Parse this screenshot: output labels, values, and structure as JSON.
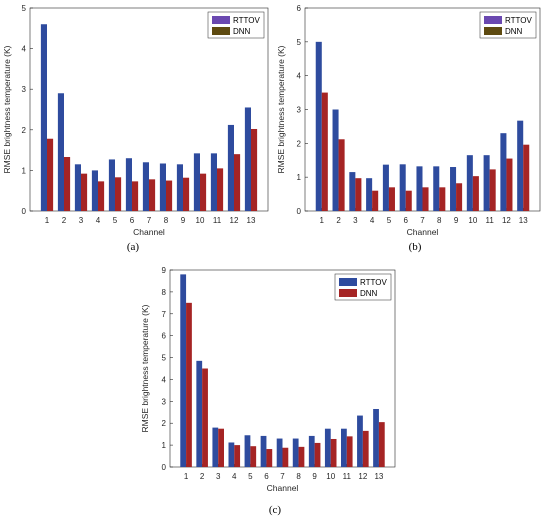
{
  "chart_data": [
    {
      "type": "bar",
      "panel_label": "(a)",
      "xlabel": "Channel",
      "ylabel": "RMSE brightness temperature (K)",
      "categories": [
        "1",
        "2",
        "3",
        "4",
        "5",
        "6",
        "7",
        "8",
        "9",
        "10",
        "11",
        "12",
        "13"
      ],
      "ylim": [
        0,
        5
      ],
      "yticks": [
        0,
        1,
        2,
        3,
        4,
        5
      ],
      "legend_position": "top-right",
      "series": [
        {
          "name": "RTTOV",
          "color": "#2E4B9E",
          "legend_color": "#6A48B0",
          "values": [
            4.6,
            2.9,
            1.15,
            1.0,
            1.27,
            1.3,
            1.2,
            1.17,
            1.15,
            1.42,
            1.42,
            2.12,
            2.55
          ]
        },
        {
          "name": "DNN",
          "color": "#A52424",
          "legend_color": "#5E4A10",
          "values": [
            1.78,
            1.33,
            0.92,
            0.73,
            0.83,
            0.73,
            0.78,
            0.75,
            0.82,
            0.92,
            1.05,
            1.4,
            2.02
          ]
        }
      ]
    },
    {
      "type": "bar",
      "panel_label": "(b)",
      "xlabel": "Channel",
      "ylabel": "RMSE brightness temperature (K)",
      "categories": [
        "1",
        "2",
        "3",
        "4",
        "5",
        "6",
        "7",
        "8",
        "9",
        "10",
        "11",
        "12",
        "13"
      ],
      "ylim": [
        0,
        6
      ],
      "yticks": [
        0,
        1,
        2,
        3,
        4,
        5,
        6
      ],
      "legend_position": "top-right",
      "series": [
        {
          "name": "RTTOV",
          "color": "#2E4B9E",
          "legend_color": "#6A48B0",
          "values": [
            5.0,
            3.0,
            1.15,
            0.97,
            1.37,
            1.38,
            1.32,
            1.32,
            1.3,
            1.65,
            1.65,
            2.3,
            2.67
          ]
        },
        {
          "name": "DNN",
          "color": "#A52424",
          "legend_color": "#5E4A10",
          "values": [
            3.5,
            2.12,
            0.97,
            0.6,
            0.7,
            0.6,
            0.7,
            0.7,
            0.82,
            1.03,
            1.23,
            1.55,
            1.96
          ]
        }
      ]
    },
    {
      "type": "bar",
      "panel_label": "(c)",
      "xlabel": "Channel",
      "ylabel": "RMSE brightness temperature (K)",
      "categories": [
        "1",
        "2",
        "3",
        "4",
        "5",
        "6",
        "7",
        "8",
        "9",
        "10",
        "11",
        "12",
        "13"
      ],
      "ylim": [
        0,
        9
      ],
      "yticks": [
        0,
        1,
        2,
        3,
        4,
        5,
        6,
        7,
        8,
        9
      ],
      "legend_position": "top-right",
      "series": [
        {
          "name": "RTTOV",
          "color": "#2E4B9E",
          "legend_color": "#2E4B9E",
          "values": [
            8.8,
            4.85,
            1.8,
            1.12,
            1.45,
            1.42,
            1.3,
            1.3,
            1.42,
            1.75,
            1.75,
            2.35,
            2.65
          ]
        },
        {
          "name": "DNN",
          "color": "#A52424",
          "legend_color": "#A52424",
          "values": [
            7.5,
            4.5,
            1.75,
            1.0,
            0.95,
            0.82,
            0.88,
            0.92,
            1.1,
            1.28,
            1.4,
            1.65,
            2.05
          ]
        }
      ]
    }
  ]
}
